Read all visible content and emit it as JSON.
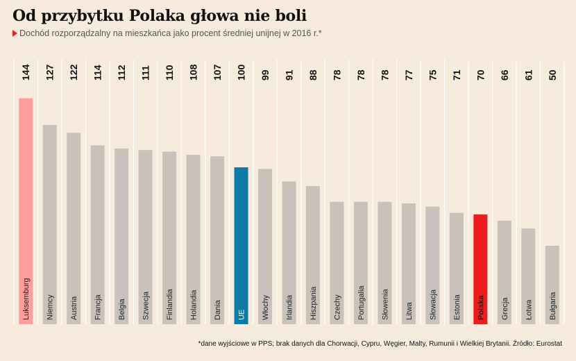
{
  "header": {
    "title": "Od przybytku Polaka głowa nie boli",
    "subtitle": "Dochód rozporządzalny na mieszkańca jako procent średniej unijnej w 2016 r.*"
  },
  "footnote": "*dane wyjściowe w PPS; brak danych dla Chorwacji, Cypru, Węgier, Malty, Rumunii i Wielkiej Brytanii. Źródło: Eurostat",
  "colors": {
    "default_bar": "#c8c2ba",
    "luxembourg_bar": "#ff9e9c",
    "eu_bar": "#0f7aa3",
    "poland_bar": "#ee1c1c",
    "marker": "#e0251c",
    "background": "#f6ebdd"
  },
  "chart_data": {
    "type": "bar",
    "orientation": "vertical",
    "categories": [
      "Luksemburg",
      "Niemcy",
      "Austria",
      "Francja",
      "Belgia",
      "Szwecja",
      "Finlandia",
      "Holandia",
      "Dania",
      "UE",
      "Włochy",
      "Irlandia",
      "Hiszpania",
      "Czechy",
      "Portugalia",
      "Słowenia",
      "Litwa",
      "Słowacja",
      "Estonia",
      "Polska",
      "Grecja",
      "Łotwa",
      "Bułgaria"
    ],
    "values": [
      144,
      127,
      122,
      114,
      112,
      111,
      110,
      108,
      107,
      100,
      99,
      91,
      88,
      78,
      78,
      78,
      77,
      75,
      71,
      70,
      66,
      61,
      50
    ],
    "highlight": {
      "Luksemburg": "luxembourg_bar",
      "UE": "eu_bar",
      "Polska": "poland_bar"
    },
    "bold_labels": [
      "Polska"
    ],
    "value_labels": "top, rotated",
    "category_labels": "inside bar base, rotated",
    "grid": "vertical separators",
    "legend": "none"
  }
}
